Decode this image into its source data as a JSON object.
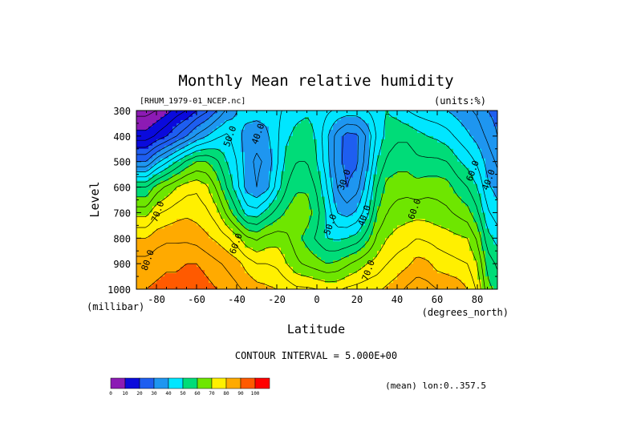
{
  "chart_data": {
    "type": "contour",
    "title": "Monthly Mean relative humidity",
    "source_label": "[RHUM_1979-01_NCEP.nc]",
    "units_label": "(units:%)",
    "xlabel": "Latitude",
    "ylabel": "Level",
    "x_units": "(degrees_north)",
    "y_units": "(millibar)",
    "xlim": [
      -90,
      90
    ],
    "ylim": [
      1000,
      300
    ],
    "x_ticks": [
      -80,
      -60,
      -40,
      -20,
      0,
      20,
      40,
      60,
      80
    ],
    "x_tick_labels": [
      "-80",
      "-60",
      "-40",
      "-20",
      "0",
      "20",
      "40",
      "60",
      "80"
    ],
    "y_ticks": [
      300,
      400,
      500,
      600,
      700,
      800,
      900,
      1000
    ],
    "y_tick_labels": [
      "300",
      "400",
      "500",
      "600",
      "700",
      "800",
      "900",
      "1000"
    ],
    "contour_interval_text": "CONTOUR INTERVAL = 5.000E+00",
    "footer_text": "(mean) lon:0..357.5",
    "contour_labels": [
      {
        "text": "40.0",
        "lat": -28,
        "level": 395
      },
      {
        "text": "50.0",
        "lat": -42,
        "level": 405
      },
      {
        "text": "30.0",
        "lat": 15,
        "level": 575
      },
      {
        "text": "40.0",
        "lat": 25,
        "level": 715
      },
      {
        "text": "50.0",
        "lat": 8,
        "level": 750
      },
      {
        "text": "60.0",
        "lat": 50,
        "level": 690
      },
      {
        "text": "60.0",
        "lat": 79,
        "level": 540
      },
      {
        "text": "40.0",
        "lat": 87,
        "level": 575
      },
      {
        "text": "70.0",
        "lat": -78,
        "level": 700
      },
      {
        "text": "60.0",
        "lat": -39,
        "level": 825
      },
      {
        "text": "70.0",
        "lat": 27,
        "level": 930
      },
      {
        "text": "80.0",
        "lat": -83,
        "level": 890
      }
    ],
    "profiles": {
      "lats": [
        -85,
        -80,
        -75,
        -70,
        -65,
        -60,
        -55,
        -50,
        -45,
        -40,
        -35,
        -30,
        -25,
        -20,
        -15,
        -10,
        -5,
        0,
        5,
        10,
        15,
        20,
        25,
        30,
        35,
        40,
        45,
        50,
        55,
        60,
        65,
        70,
        75,
        80,
        85,
        90
      ],
      "levels": [
        300,
        400,
        500,
        600,
        700,
        800,
        900,
        1000
      ],
      "values": [
        [
          3,
          12,
          30,
          55,
          68,
          80,
          87,
          90
        ],
        [
          5,
          16,
          38,
          62,
          74,
          83,
          88,
          91
        ],
        [
          8,
          20,
          44,
          66,
          76,
          84,
          89,
          92
        ],
        [
          12,
          25,
          50,
          70,
          78,
          84,
          89,
          92
        ],
        [
          15,
          30,
          56,
          73,
          79,
          84,
          90,
          93
        ],
        [
          20,
          36,
          60,
          74,
          78,
          83,
          90,
          94
        ],
        [
          24,
          40,
          60,
          71,
          76,
          81,
          88,
          92
        ],
        [
          30,
          44,
          56,
          64,
          72,
          79,
          86,
          90
        ],
        [
          36,
          46,
          50,
          55,
          64,
          76,
          84,
          88
        ],
        [
          40,
          42,
          45,
          47,
          56,
          72,
          82,
          86
        ],
        [
          42,
          38,
          37,
          38,
          48,
          66,
          78,
          84
        ],
        [
          42,
          37,
          34,
          35,
          47,
          64,
          75,
          82
        ],
        [
          42,
          39,
          36,
          38,
          52,
          67,
          75,
          81
        ],
        [
          44,
          44,
          44,
          47,
          57,
          68,
          74,
          80
        ],
        [
          46,
          49,
          52,
          55,
          61,
          66,
          70,
          78
        ],
        [
          48,
          52,
          55,
          59,
          64,
          62,
          66,
          76
        ],
        [
          49,
          53,
          55,
          59,
          63,
          58,
          64,
          76
        ],
        [
          48,
          49,
          50,
          54,
          57,
          54,
          62,
          75
        ],
        [
          46,
          41,
          42,
          45,
          49,
          50,
          60,
          74
        ],
        [
          44,
          33,
          32,
          35,
          40,
          49,
          61,
          74
        ],
        [
          43,
          28,
          28,
          30,
          38,
          50,
          64,
          76
        ],
        [
          43,
          29,
          29,
          33,
          41,
          52,
          67,
          77
        ],
        [
          45,
          36,
          38,
          43,
          48,
          58,
          70,
          78
        ],
        [
          48,
          46,
          50,
          55,
          60,
          66,
          72,
          79
        ],
        [
          50,
          52,
          56,
          62,
          65,
          70,
          75,
          81
        ],
        [
          48,
          54,
          58,
          63,
          67,
          72,
          77,
          83
        ],
        [
          45,
          54,
          58,
          63,
          68,
          73,
          79,
          86
        ],
        [
          43,
          52,
          56,
          62,
          68,
          75,
          82,
          88
        ],
        [
          42,
          50,
          56,
          63,
          68,
          74,
          81,
          87
        ],
        [
          41,
          49,
          56,
          63,
          67,
          73,
          78,
          85
        ],
        [
          40,
          47,
          55,
          62,
          66,
          72,
          77,
          84
        ],
        [
          38,
          44,
          51,
          58,
          64,
          71,
          76,
          83
        ],
        [
          36,
          41,
          48,
          55,
          62,
          70,
          75,
          80
        ],
        [
          34,
          38,
          44,
          50,
          56,
          64,
          70,
          74
        ],
        [
          30,
          34,
          38,
          41,
          46,
          52,
          58,
          62
        ],
        [
          28,
          30,
          34,
          38,
          42,
          48,
          54,
          58
        ]
      ]
    },
    "colorbar": {
      "bounds": [
        0,
        10,
        20,
        30,
        40,
        50,
        60,
        70,
        80,
        90,
        100
      ],
      "labels": [
        "0",
        "10",
        "20",
        "30",
        "40",
        "50",
        "60",
        "70",
        "80",
        "90",
        "100"
      ],
      "colors": [
        "#8c1bb4",
        "#0a0adc",
        "#1e5ef0",
        "#1e96f0",
        "#00e6ff",
        "#00dc78",
        "#6ee600",
        "#fff000",
        "#ffaa00",
        "#ff5a00",
        "#ff0000"
      ]
    }
  }
}
